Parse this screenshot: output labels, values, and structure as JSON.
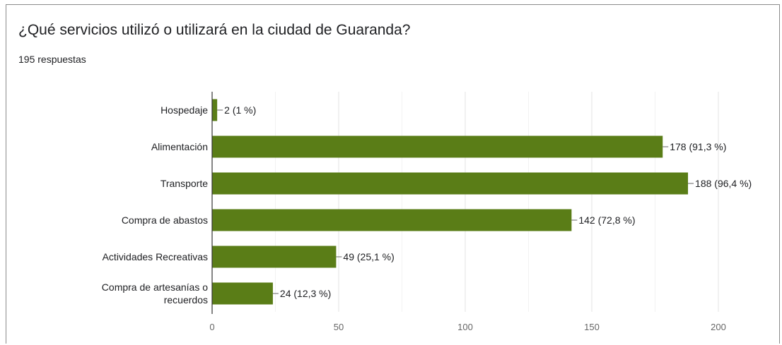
{
  "question": {
    "title": "¿Qué servicios utilizó o utilizará en la ciudad de Guaranda?",
    "responses": "195 respuestas"
  },
  "colors": {
    "bar": "#5a7d17",
    "grid": "#e6e6e6",
    "axis": "#333333",
    "text": "#202124",
    "tick": "#666666"
  },
  "chart_data": {
    "type": "bar",
    "orientation": "horizontal",
    "categories": [
      [
        "Hospedaje"
      ],
      [
        "Alimentación"
      ],
      [
        "Transporte"
      ],
      [
        "Compra de abastos"
      ],
      [
        "Actividades Recreativas"
      ],
      [
        "Compra de artesanías o",
        "recuerdos"
      ]
    ],
    "values": [
      2,
      178,
      188,
      142,
      49,
      24
    ],
    "data_labels": [
      "2 (1 %)",
      "178 (91,3 %)",
      "188 (96,4 %)",
      "142 (72,8 %)",
      "49 (25,1 %)",
      "24 (12,3 %)"
    ],
    "xlim": [
      0,
      200
    ],
    "xticks": [
      0,
      50,
      100,
      150,
      200
    ],
    "grid": true,
    "legend": "none"
  }
}
